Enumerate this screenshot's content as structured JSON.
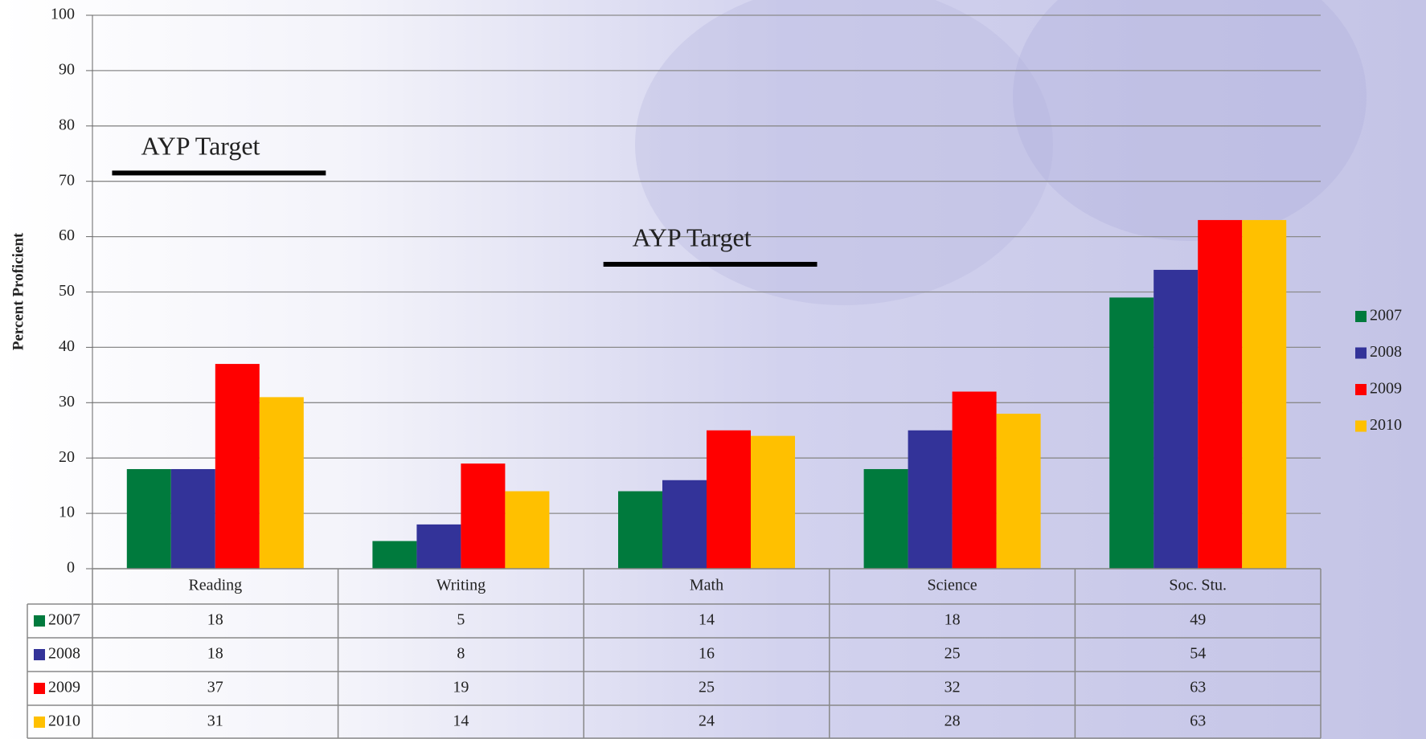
{
  "chart_data": {
    "type": "bar",
    "y_label": "Percent Proficient",
    "categories": [
      "Reading",
      "Writing",
      "Math",
      "Science",
      "Soc. Stu."
    ],
    "series": [
      {
        "name": "2007",
        "color": "#007a3d",
        "values": [
          18,
          5,
          14,
          18,
          49
        ]
      },
      {
        "name": "2008",
        "color": "#333399",
        "values": [
          18,
          8,
          16,
          25,
          54
        ]
      },
      {
        "name": "2009",
        "color": "#ff0000",
        "values": [
          37,
          19,
          25,
          32,
          63
        ]
      },
      {
        "name": "2010",
        "color": "#ffc000",
        "values": [
          31,
          14,
          24,
          28,
          63
        ]
      }
    ],
    "ylim": [
      0,
      100
    ],
    "yticks": [
      0,
      10,
      20,
      30,
      40,
      50,
      60,
      70,
      80,
      90,
      100
    ],
    "grid": true,
    "legend": "right",
    "annotations": [
      {
        "text": "AYP Target",
        "value": 71.5,
        "category": "Reading"
      },
      {
        "text": "AYP Target",
        "value": 55,
        "category": "Math"
      }
    ]
  }
}
